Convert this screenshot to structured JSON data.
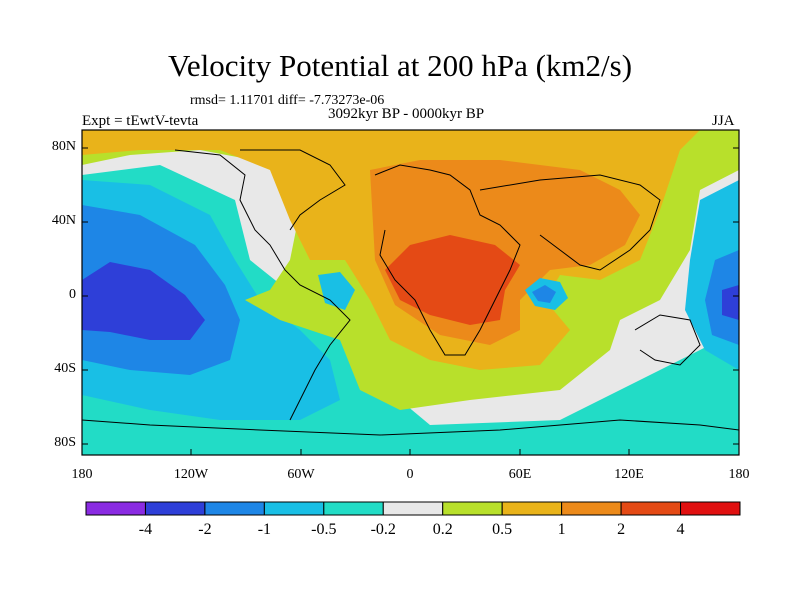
{
  "title": "Velocity Potential at 200 hPa (km2/s)",
  "stats": "rmsd= 1.11701 diff= -7.73273e-06",
  "period": "3092kyr BP - 0000kyr BP",
  "experiment": "Expt = tEwtV-tevta",
  "season": "JJA",
  "lat_ticks": [
    "80N",
    "40N",
    "0",
    "40S",
    "80S"
  ],
  "lon_ticks": [
    "180",
    "120W",
    "60W",
    "0",
    "60E",
    "120E",
    "180"
  ],
  "colorbar": {
    "labels": [
      "-4",
      "-2",
      "-1",
      "-0.5",
      "-0.2",
      "0.2",
      "0.5",
      "1",
      "2",
      "4"
    ],
    "colors": [
      "#8a2be2",
      "#2e3fd8",
      "#1e86e6",
      "#19bfe5",
      "#22dcc6",
      "#e8e8e8",
      "#b8e02b",
      "#e9b31a",
      "#ec8a1a",
      "#e44a15",
      "#e01010"
    ]
  }
}
